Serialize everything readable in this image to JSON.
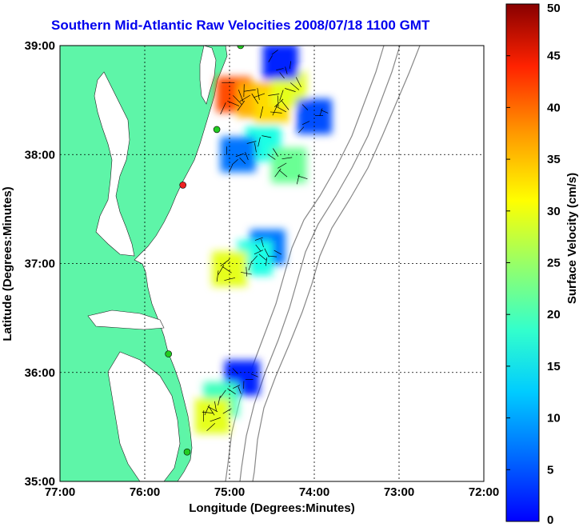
{
  "title": "Southern Mid-Atlantic Raw Velocities 2008/07/18 1100 GMT",
  "x_axis": {
    "label": "Longitude (Degrees:Minutes)",
    "ticks": [
      "77:00",
      "76:00",
      "75:00",
      "74:00",
      "73:00",
      "72:00"
    ]
  },
  "y_axis": {
    "label": "Latitude (Degrees:Minutes)",
    "ticks": [
      "39:00",
      "38:00",
      "37:00",
      "36:00",
      "35:00"
    ]
  },
  "colorbar": {
    "label": "Surface Velocity (cm/s)",
    "ticks": [
      "50",
      "45",
      "40",
      "35",
      "30",
      "25",
      "20",
      "15",
      "10",
      "5",
      "0"
    ],
    "range": [
      0,
      50
    ]
  },
  "colors": {
    "land": "#5ef5a8",
    "title": "#0000ee",
    "station_active": "#22cc22",
    "station_alert": "#ee2222"
  },
  "map_data": {
    "lon_range": [
      -77,
      -72
    ],
    "lat_range": [
      35,
      39
    ],
    "velocity_patches": [
      {
        "lon": -74.95,
        "lat": 38.55,
        "value": 40
      },
      {
        "lon": -74.7,
        "lat": 38.5,
        "value": 35
      },
      {
        "lon": -74.5,
        "lat": 38.45,
        "value": 33
      },
      {
        "lon": -74.3,
        "lat": 38.6,
        "value": 30
      },
      {
        "lon": -74.4,
        "lat": 38.85,
        "value": 8
      },
      {
        "lon": -74.0,
        "lat": 38.35,
        "value": 10
      },
      {
        "lon": -74.6,
        "lat": 38.1,
        "value": 20
      },
      {
        "lon": -74.9,
        "lat": 38.0,
        "value": 12
      },
      {
        "lon": -74.3,
        "lat": 37.9,
        "value": 24
      },
      {
        "lon": -74.55,
        "lat": 37.15,
        "value": 12
      },
      {
        "lon": -74.7,
        "lat": 37.05,
        "value": 20
      },
      {
        "lon": -75.0,
        "lat": 36.95,
        "value": 30
      },
      {
        "lon": -74.85,
        "lat": 35.95,
        "value": 8
      },
      {
        "lon": -75.1,
        "lat": 35.75,
        "value": 22
      },
      {
        "lon": -75.2,
        "lat": 35.6,
        "value": 30
      }
    ],
    "stations": [
      {
        "lon": -74.87,
        "lat": 39.0,
        "status": "active"
      },
      {
        "lon": -75.15,
        "lat": 38.23,
        "status": "active"
      },
      {
        "lon": -75.55,
        "lat": 37.72,
        "status": "alert"
      },
      {
        "lon": -75.72,
        "lat": 36.17,
        "status": "active"
      },
      {
        "lon": -75.5,
        "lat": 35.27,
        "status": "active"
      }
    ]
  }
}
